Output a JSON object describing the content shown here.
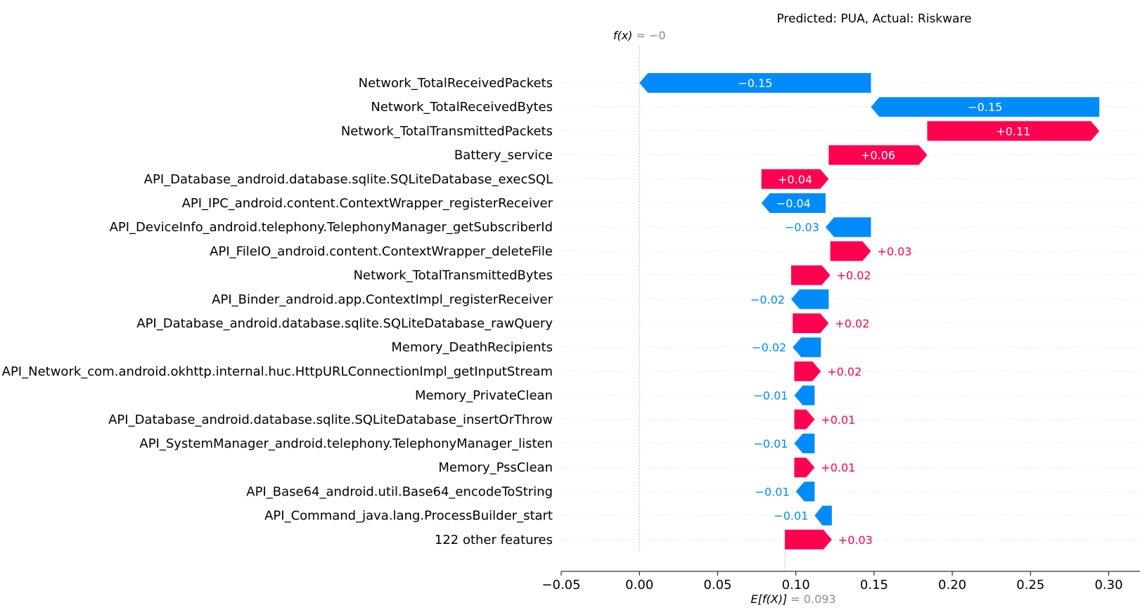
{
  "chart_data": {
    "type": "waterfall",
    "title": "Predicted: PUA, Actual: Riskware",
    "fx": {
      "prefix": "f(x)",
      "suffix": " = −0",
      "value": 0.0
    },
    "efx": {
      "prefix": "E[f(X)]",
      "suffix": " = 0.093",
      "value": 0.093
    },
    "xlim": [
      -0.05,
      0.32
    ],
    "xticks": [
      -0.05,
      0.0,
      0.05,
      0.1,
      0.15,
      0.2,
      0.25,
      0.3
    ],
    "xtick_labels": [
      "−0.05",
      "0.00",
      "0.05",
      "0.10",
      "0.15",
      "0.20",
      "0.25",
      "0.30"
    ],
    "positive_color": "#ff0051",
    "negative_color": "#008bfb",
    "features": [
      {
        "name": "Network_TotalReceivedPackets",
        "start": 0.148,
        "end": 0.0,
        "label": "−0.15"
      },
      {
        "name": "Network_TotalReceivedBytes",
        "start": 0.294,
        "end": 0.148,
        "label": "−0.15"
      },
      {
        "name": "Network_TotalTransmittedPackets",
        "start": 0.184,
        "end": 0.294,
        "label": "+0.11"
      },
      {
        "name": "Battery_service",
        "start": 0.121,
        "end": 0.184,
        "label": "+0.06"
      },
      {
        "name": "API_Database_android.database.sqlite.SQLiteDatabase_execSQL",
        "start": 0.078,
        "end": 0.121,
        "label": "+0.04"
      },
      {
        "name": "API_IPC_android.content.ContextWrapper_registerReceiver",
        "start": 0.119,
        "end": 0.078,
        "label": "−0.04"
      },
      {
        "name": "API_DeviceInfo_android.telephony.TelephonyManager_getSubscriberId",
        "start": 0.148,
        "end": 0.119,
        "label": "−0.03"
      },
      {
        "name": "API_FileIO_android.content.ContextWrapper_deleteFile",
        "start": 0.122,
        "end": 0.148,
        "label": "+0.03"
      },
      {
        "name": "Network_TotalTransmittedBytes",
        "start": 0.097,
        "end": 0.122,
        "label": "+0.02"
      },
      {
        "name": "API_Binder_android.app.ContextImpl_registerReceiver",
        "start": 0.121,
        "end": 0.097,
        "label": "−0.02"
      },
      {
        "name": "API_Database_android.database.sqlite.SQLiteDatabase_rawQuery",
        "start": 0.098,
        "end": 0.121,
        "label": "+0.02"
      },
      {
        "name": "Memory_DeathRecipients",
        "start": 0.116,
        "end": 0.098,
        "label": "−0.02"
      },
      {
        "name": "API_Network_com.android.okhttp.internal.huc.HttpURLConnectionImpl_getInputStream",
        "start": 0.099,
        "end": 0.116,
        "label": "+0.02"
      },
      {
        "name": "Memory_PrivateClean",
        "start": 0.112,
        "end": 0.099,
        "label": "−0.01"
      },
      {
        "name": "API_Database_android.database.sqlite.SQLiteDatabase_insertOrThrow",
        "start": 0.099,
        "end": 0.112,
        "label": "+0.01"
      },
      {
        "name": "API_SystemManager_android.telephony.TelephonyManager_listen",
        "start": 0.112,
        "end": 0.099,
        "label": "−0.01"
      },
      {
        "name": "Memory_PssClean",
        "start": 0.099,
        "end": 0.112,
        "label": "+0.01"
      },
      {
        "name": "API_Base64_android.util.Base64_encodeToString",
        "start": 0.112,
        "end": 0.1,
        "label": "−0.01"
      },
      {
        "name": "API_Command_java.lang.ProcessBuilder_start",
        "start": 0.123,
        "end": 0.112,
        "label": "−0.01"
      },
      {
        "name": "122 other features",
        "start": 0.093,
        "end": 0.123,
        "label": "+0.03"
      }
    ]
  }
}
